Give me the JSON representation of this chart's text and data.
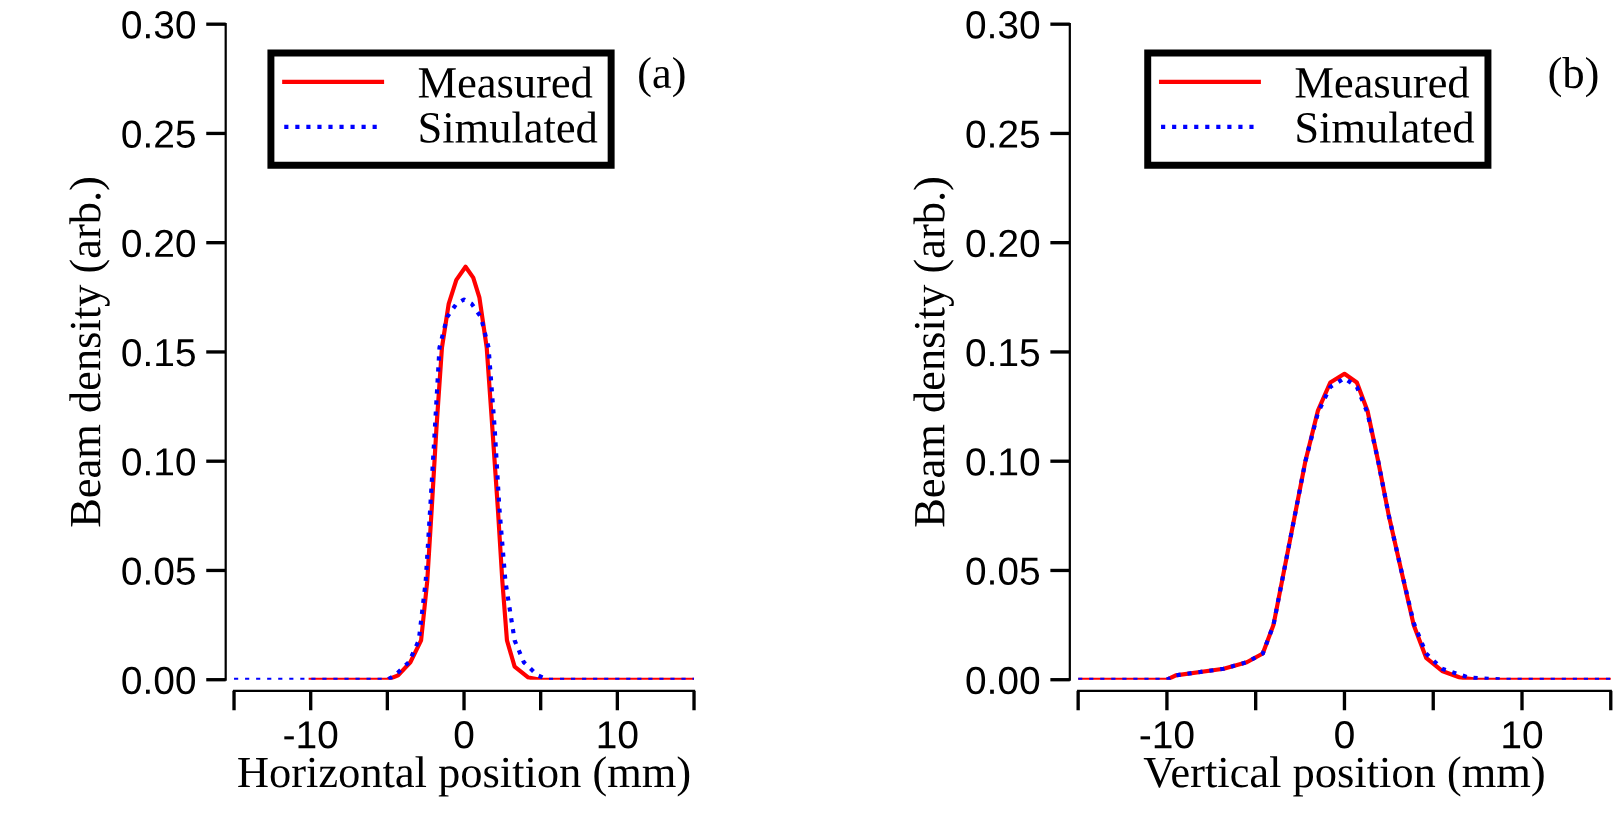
{
  "chart_data": [
    {
      "type": "line",
      "xlabel": "Horizontal position (mm)",
      "ylabel": "Beam density (arb.)",
      "annotations": [
        "(a)"
      ],
      "legend": "top",
      "grid": false,
      "xlim": [
        -15,
        15
      ],
      "ylim": [
        0,
        0.3
      ],
      "xticks": [
        {
          "value": -15,
          "label": null
        },
        -10,
        {
          "value": -5,
          "label": null
        },
        0,
        {
          "value": 5,
          "label": null
        },
        10,
        {
          "value": 15,
          "label": null
        }
      ],
      "yticks": [
        {
          "value": 0,
          "label": "0.00"
        },
        {
          "value": 0.05,
          "label": "0.05"
        },
        {
          "value": 0.1,
          "label": "0.10"
        },
        {
          "value": 0.15,
          "label": "0.15"
        },
        {
          "value": 0.2,
          "label": "0.20"
        },
        {
          "value": 0.25,
          "label": "0.25"
        },
        {
          "value": 0.3,
          "label": "0.30"
        }
      ],
      "series": [
        {
          "name": "Measured",
          "color": "#ff0000",
          "line_style": "solid",
          "x": [
            -10,
            -5,
            -4.3,
            -3.5,
            -2.8,
            -2.4,
            -2.1,
            -1.8,
            -1.44,
            -1,
            -0.5,
            0.1,
            0.6,
            1.0,
            1.48,
            1.8,
            2.2,
            2.5,
            2.8,
            3.3,
            4.2,
            5,
            15
          ],
          "values": [
            0,
            0,
            0.002,
            0.008,
            0.018,
            0.045,
            0.079,
            0.115,
            0.152,
            0.172,
            0.183,
            0.189,
            0.184,
            0.175,
            0.152,
            0.12,
            0.079,
            0.045,
            0.018,
            0.006,
            0.001,
            0,
            0
          ]
        },
        {
          "name": "Simulated",
          "color": "#0000ff",
          "line_style": "dotted",
          "x": [
            -15,
            -5,
            -4.5,
            -3.6,
            -2.95,
            -2.5,
            -2.2,
            -1.9,
            -1.6,
            -1.1,
            -0.5,
            0,
            0.5,
            1.1,
            1.6,
            2.0,
            2.3,
            2.7,
            3.3,
            3.9,
            4.8,
            5.5,
            15
          ],
          "values": [
            0,
            0,
            0.002,
            0.008,
            0.018,
            0.045,
            0.079,
            0.115,
            0.152,
            0.166,
            0.172,
            0.174,
            0.172,
            0.166,
            0.152,
            0.115,
            0.079,
            0.045,
            0.018,
            0.008,
            0.002,
            0,
            0
          ]
        }
      ]
    },
    {
      "type": "line",
      "xlabel": "Vertical position (mm)",
      "ylabel": "Beam density (arb.)",
      "annotations": [
        "(b)"
      ],
      "legend": "top",
      "grid": false,
      "xlim": [
        -15,
        15
      ],
      "ylim": [
        0,
        0.3
      ],
      "xticks": [
        {
          "value": -15,
          "label": null
        },
        -10,
        {
          "value": -5,
          "label": null
        },
        0,
        {
          "value": 5,
          "label": null
        },
        10,
        {
          "value": 15,
          "label": null
        }
      ],
      "yticks": [
        {
          "value": 0,
          "label": "0.00"
        },
        {
          "value": 0.05,
          "label": "0.05"
        },
        {
          "value": 0.1,
          "label": "0.10"
        },
        {
          "value": 0.15,
          "label": "0.15"
        },
        {
          "value": 0.2,
          "label": "0.20"
        },
        {
          "value": 0.25,
          "label": "0.25"
        },
        {
          "value": 0.3,
          "label": "0.30"
        }
      ],
      "series": [
        {
          "name": "Measured",
          "color": "#ff0000",
          "line_style": "solid",
          "x": [
            -15,
            -10,
            -9.5,
            -6.8,
            -5.5,
            -4.6,
            -4,
            -3.4,
            -2.8,
            -2.2,
            -1.5,
            -0.8,
            0,
            0.7,
            1.3,
            1.9,
            2.5,
            3.2,
            3.9,
            4.6,
            5.5,
            6.5,
            7.5,
            15
          ],
          "values": [
            0,
            0,
            0.002,
            0.005,
            0.008,
            0.012,
            0.025,
            0.05,
            0.075,
            0.1,
            0.123,
            0.136,
            0.14,
            0.136,
            0.123,
            0.1,
            0.075,
            0.05,
            0.025,
            0.01,
            0.004,
            0.001,
            0,
            0
          ]
        },
        {
          "name": "Simulated",
          "color": "#0000ff",
          "line_style": "dotted",
          "x": [
            -15,
            -10,
            -9.5,
            -6.8,
            -5.5,
            -4.6,
            -4,
            -3.4,
            -2.8,
            -2.2,
            -1.5,
            -0.8,
            0,
            0.7,
            1.3,
            1.9,
            2.5,
            3.2,
            3.9,
            4.6,
            5.5,
            7,
            9,
            15
          ],
          "values": [
            0,
            0,
            0.002,
            0.005,
            0.008,
            0.012,
            0.025,
            0.05,
            0.075,
            0.1,
            0.122,
            0.134,
            0.138,
            0.134,
            0.122,
            0.1,
            0.075,
            0.05,
            0.026,
            0.012,
            0.005,
            0.001,
            0,
            0
          ]
        }
      ]
    }
  ]
}
